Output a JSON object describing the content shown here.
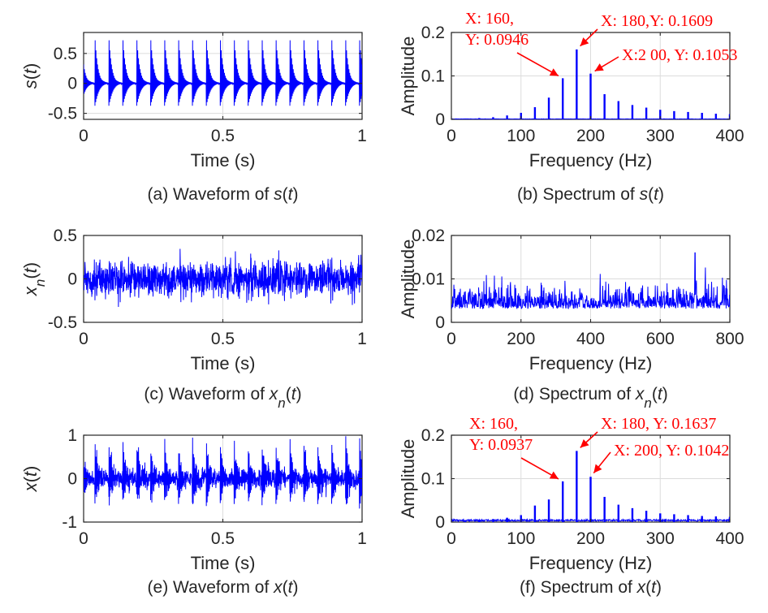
{
  "chart_data": [
    {
      "id": "a",
      "type": "line",
      "kind": "waveform",
      "caption": "(a) Waveform of s(t)",
      "caption_parts": [
        "(a) Waveform of ",
        "s",
        "(",
        "t",
        ")"
      ],
      "xlabel": "Time (s)",
      "ylabel": "s(t)",
      "ylabel_parts": [
        "s",
        "(",
        "t",
        ")"
      ],
      "xlim": [
        0,
        1
      ],
      "ylim": [
        -0.6,
        0.85
      ],
      "xticks": [
        0,
        0.5,
        1
      ],
      "xtick_labels": [
        "0",
        "0.5",
        "1"
      ],
      "yticks": [
        -0.5,
        0,
        0.5
      ],
      "ytick_labels": [
        "-0.5",
        "0",
        "0.5"
      ],
      "grid": true,
      "signal": {
        "impulse_rate_hz": 20,
        "first_impulse_s": 0.04,
        "peak_positive": 0.82,
        "peak_negative": -0.55,
        "noise_level": 0
      }
    },
    {
      "id": "b",
      "type": "bar",
      "kind": "spectrum",
      "caption": "(b) Spectrum of s(t)",
      "caption_parts": [
        "(b) Spectrum of ",
        "s",
        "(",
        "t",
        ")"
      ],
      "xlabel": "Frequency (Hz)",
      "ylabel": "Amplitude",
      "xlim": [
        0,
        400
      ],
      "ylim": [
        0,
        0.2
      ],
      "xticks": [
        0,
        100,
        200,
        300,
        400
      ],
      "xtick_labels": [
        "0",
        "100",
        "200",
        "300",
        "400"
      ],
      "yticks": [
        0,
        0.1,
        0.2
      ],
      "ytick_labels": [
        "0",
        "0.1",
        "0.2"
      ],
      "grid": true,
      "frequencies": [
        20,
        40,
        60,
        80,
        100,
        120,
        140,
        160,
        180,
        200,
        220,
        240,
        260,
        280,
        300,
        320,
        340,
        360,
        380,
        400
      ],
      "values": [
        0.002,
        0.003,
        0.005,
        0.009,
        0.015,
        0.028,
        0.05,
        0.0946,
        0.1609,
        0.1053,
        0.058,
        0.042,
        0.033,
        0.027,
        0.022,
        0.019,
        0.017,
        0.015,
        0.013,
        0.012
      ],
      "annotations": [
        {
          "text_lines": [
            "X: 160,",
            "Y: 0.0946"
          ],
          "x": 160,
          "y": 0.0946
        },
        {
          "text_lines": [
            "X: 180,Y: 0.1609"
          ],
          "x": 180,
          "y": 0.1609
        },
        {
          "text_lines": [
            "X:2 00, Y: 0.1053"
          ],
          "x": 200,
          "y": 0.1053
        }
      ]
    },
    {
      "id": "c",
      "type": "line",
      "kind": "waveform",
      "caption": "(c) Waveform of xn(t)",
      "caption_parts": [
        "(c) Waveform of ",
        "x",
        "n",
        "(",
        "t",
        ")"
      ],
      "xlabel": "Time (s)",
      "ylabel": "xn(t)",
      "ylabel_parts": [
        "x",
        "n",
        "(",
        "t",
        ")"
      ],
      "xlim": [
        0,
        1
      ],
      "ylim": [
        -0.5,
        0.5
      ],
      "xticks": [
        0,
        0.5,
        1
      ],
      "xtick_labels": [
        "0",
        "0.5",
        "1"
      ],
      "yticks": [
        -0.5,
        0,
        0.5
      ],
      "ytick_labels": [
        "-0.5",
        "0",
        "0.5"
      ],
      "grid": true,
      "signal": {
        "impulse_rate_hz": 0,
        "noise_level": 0.1,
        "peak_positive": 0.32,
        "peak_negative": -0.33
      }
    },
    {
      "id": "d",
      "type": "line",
      "kind": "noise-spectrum",
      "caption": "(d) Spectrum of xn(t)",
      "caption_parts": [
        "(d) Spectrum of ",
        "x",
        "n",
        "(",
        "t",
        ")"
      ],
      "xlabel": "Frequency (Hz)",
      "ylabel": "Amplitude",
      "xlim": [
        0,
        800
      ],
      "ylim": [
        0,
        0.02
      ],
      "xticks": [
        0,
        200,
        400,
        600,
        800
      ],
      "xtick_labels": [
        "0",
        "200",
        "400",
        "600",
        "800"
      ],
      "yticks": [
        0,
        0.01,
        0.02
      ],
      "ytick_labels": [
        "0",
        "0.01",
        "0.02"
      ],
      "grid": true,
      "spectrum": {
        "mean": 0.004,
        "spread": 0.0025,
        "max": 0.016,
        "max_at_hz": 700
      }
    },
    {
      "id": "e",
      "type": "line",
      "kind": "waveform",
      "caption": "(e) Waveform of x(t)",
      "caption_parts": [
        "(e) Waveform of ",
        "x",
        "(",
        "t",
        ")"
      ],
      "xlabel": "Time (s)",
      "ylabel": "x(t)",
      "ylabel_parts": [
        "x",
        "(",
        "t",
        ")"
      ],
      "xlim": [
        0,
        1
      ],
      "ylim": [
        -1,
        1
      ],
      "xticks": [
        0,
        0.5,
        1
      ],
      "xtick_labels": [
        "0",
        "0.5",
        "1"
      ],
      "yticks": [
        -1,
        0,
        1
      ],
      "ytick_labels": [
        "-1",
        "0",
        "1"
      ],
      "grid": true,
      "signal": {
        "impulse_rate_hz": 20,
        "first_impulse_s": 0.04,
        "peak_positive": 0.88,
        "peak_negative": -0.75,
        "noise_level": 0.1
      }
    },
    {
      "id": "f",
      "type": "bar",
      "kind": "spectrum",
      "caption": "(f) Spectrum of x(t)",
      "caption_parts": [
        "(f) Spectrum of ",
        "x",
        "(",
        "t",
        ")"
      ],
      "xlabel": "Frequency (Hz)",
      "ylabel": "Amplitude",
      "xlim": [
        0,
        400
      ],
      "ylim": [
        0,
        0.2
      ],
      "xticks": [
        0,
        100,
        200,
        300,
        400
      ],
      "xtick_labels": [
        "0",
        "100",
        "200",
        "300",
        "400"
      ],
      "yticks": [
        0,
        0.1,
        0.2
      ],
      "ytick_labels": [
        "0",
        "0.1",
        "0.2"
      ],
      "grid": true,
      "noise_floor": 0.004,
      "frequencies": [
        20,
        40,
        60,
        80,
        100,
        120,
        140,
        160,
        180,
        200,
        220,
        240,
        260,
        280,
        300,
        320,
        340,
        360,
        380,
        400
      ],
      "values": [
        0.004,
        0.005,
        0.007,
        0.01,
        0.016,
        0.038,
        0.052,
        0.0937,
        0.1637,
        0.1042,
        0.058,
        0.04,
        0.032,
        0.026,
        0.02,
        0.018,
        0.016,
        0.014,
        0.013,
        0.012
      ],
      "annotations": [
        {
          "text_lines": [
            "X: 160,",
            "Y: 0.0937"
          ],
          "x": 160,
          "y": 0.0937
        },
        {
          "text_lines": [
            "X: 180, Y: 0.1637"
          ],
          "x": 180,
          "y": 0.1637
        },
        {
          "text_lines": [
            "X: 200, Y: 0.1042"
          ],
          "x": 200,
          "y": 0.1042
        }
      ]
    }
  ]
}
